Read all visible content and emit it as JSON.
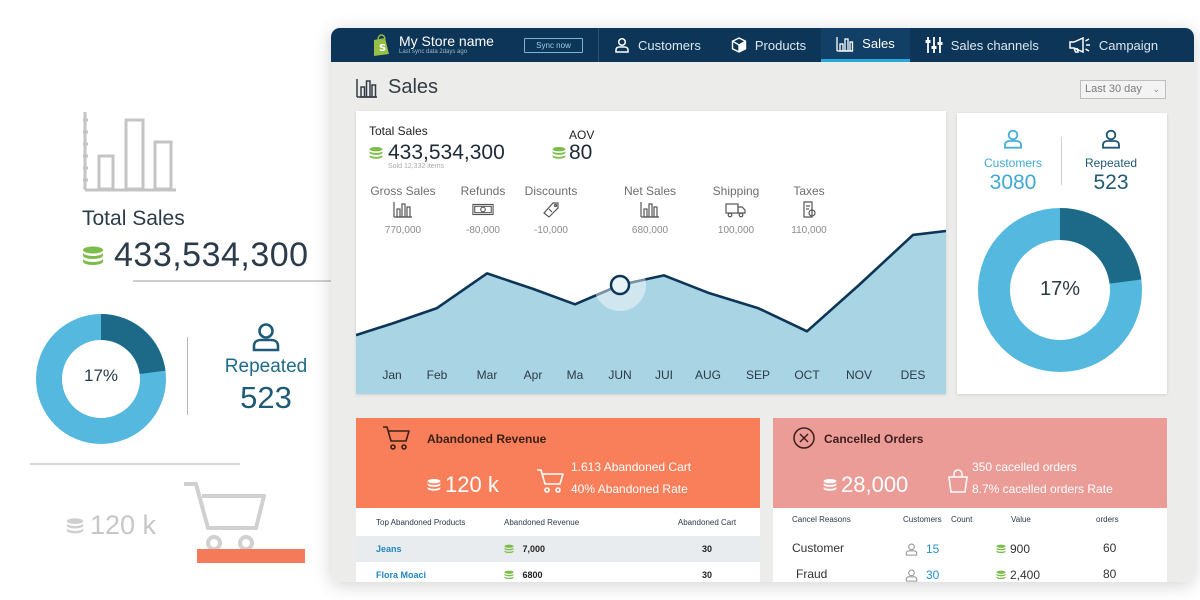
{
  "promo": {
    "total_sales_label": "Total Sales",
    "total_sales_value": "433,534,300",
    "donut_percent_label": "17%",
    "repeated_label": "Repeated",
    "repeated_value": "523",
    "abandoned_value": "120 k",
    "donut_fraction": 0.17
  },
  "nav": {
    "store_name": "My Store name",
    "last_sync": "Last sync data 2days ago",
    "sync_button": "Sync now",
    "items": [
      {
        "label": "Customers",
        "icon": "user-icon"
      },
      {
        "label": "Products",
        "icon": "box-icon"
      },
      {
        "label": "Sales",
        "icon": "bar-chart-icon"
      },
      {
        "label": "Sales channels",
        "icon": "sliders-icon"
      },
      {
        "label": "Campaign",
        "icon": "megaphone-icon"
      }
    ],
    "active": "Sales"
  },
  "page": {
    "title": "Sales",
    "range": "Last 30 day"
  },
  "sales": {
    "total_label": "Total Sales",
    "total_value": "433,534,300",
    "sold_items": "Sold 12,332 items",
    "aov_label": "AOV",
    "aov_value": "80",
    "metrics": [
      {
        "label": "Gross Sales",
        "value": "770,000",
        "icon": "bar-chart-icon"
      },
      {
        "label": "Refunds",
        "value": "-80,000",
        "icon": "cash-icon"
      },
      {
        "label": "Discounts",
        "value": "-10,000",
        "icon": "tag-icon"
      },
      {
        "label": "Net Sales",
        "value": "680,000",
        "icon": "bar-chart-icon"
      },
      {
        "label": "Shipping",
        "value": "100,000",
        "icon": "truck-icon"
      },
      {
        "label": "Taxes",
        "value": "110,000",
        "icon": "receipt-icon"
      }
    ]
  },
  "chart_data": {
    "type": "area",
    "categories": [
      "Jan",
      "Feb",
      "Mar",
      "Apr",
      "Ma",
      "JUN",
      "JUI",
      "AUG",
      "SEP",
      "OCT",
      "NOV",
      "DES"
    ],
    "series": [
      {
        "values": [
          22,
          30,
          48,
          40,
          32,
          42,
          47,
          38,
          30,
          18,
          42,
          68
        ]
      }
    ],
    "highlight_index": 5,
    "fill_color": "#a9d4e4",
    "line_color": "#0c3558"
  },
  "customers": {
    "customers_label": "Customers",
    "customers_value": "3080",
    "repeated_label": "Repeated",
    "repeated_value": "523",
    "donut_label": "17%",
    "donut_fraction": 0.17,
    "colors": {
      "main": "#55b8df",
      "repeated": "#1d6a88"
    }
  },
  "abandoned": {
    "title": "Abandoned Revenue",
    "value": "120 k",
    "carts": "1.613 Abandoned Cart",
    "rate": "40% Abandoned Rate",
    "columns": [
      "Top Abandoned Products",
      "Abandoned Revenue",
      "Abandoned Cart"
    ],
    "rows": [
      {
        "product": "Jeans",
        "revenue": "7,000",
        "cart": "30"
      },
      {
        "product": "Flora Moaci",
        "revenue": "6800",
        "cart": "30"
      }
    ]
  },
  "cancelled": {
    "title": "Cancelled Orders",
    "value": "28,000",
    "orders": "350 cacelled orders",
    "rate": "8.7% cacelled orders Rate",
    "columns": [
      "Cancel Reasons",
      "Customers",
      "Count",
      "Value",
      "orders"
    ],
    "rows": [
      {
        "reason": "Customer",
        "count": "15",
        "value": "900",
        "orders": "60"
      },
      {
        "reason": "Fraud",
        "count": "30",
        "value": "2,400",
        "orders": "80"
      }
    ]
  }
}
